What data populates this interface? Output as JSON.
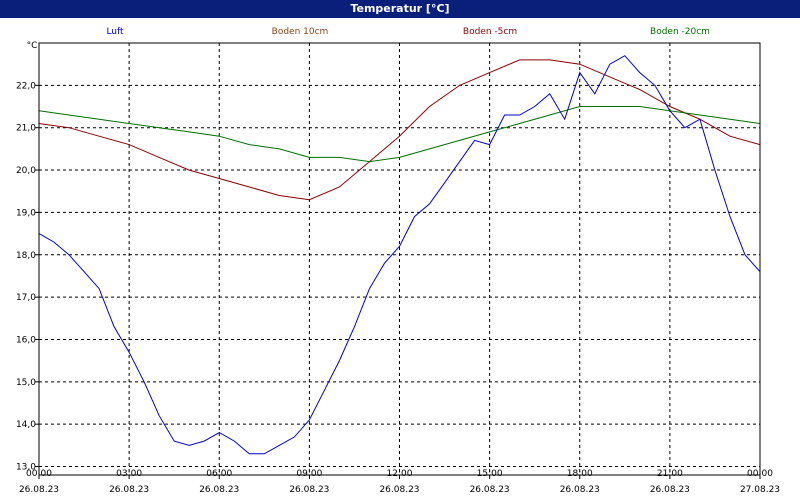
{
  "window": {
    "title": "Temperatur [°C]"
  },
  "colors": {
    "titlebar": "#0a1f7a",
    "Luft": "#0000cc",
    "Boden 10cm": "#8b0000",
    "Boden -5cm": "#8b0000",
    "Boden -20cm": "#007000",
    "legend_Luft": "#0000cc",
    "legend_Boden 10cm": "#8b4513",
    "legend_Boden -5cm": "#8b0000",
    "legend_Boden -20cm": "#007000"
  },
  "chart_data": {
    "type": "line",
    "title": "Temperatur [°C]",
    "ylabel": "°C",
    "ylim": [
      12.8,
      23.0
    ],
    "xlim": [
      "26.08.23 00:00",
      "27.08.23 00:00"
    ],
    "grid": true,
    "legend_position": "top",
    "yticks": [
      "13,0",
      "14,0",
      "15,0",
      "16,0",
      "17,0",
      "18,0",
      "19,0",
      "20,0",
      "21,0",
      "22,0"
    ],
    "xticks": [
      {
        "time": "00:00",
        "date": "26.08.23"
      },
      {
        "time": "03:00",
        "date": "26.08.23"
      },
      {
        "time": "06:00",
        "date": "26.08.23"
      },
      {
        "time": "09:00",
        "date": "26.08.23"
      },
      {
        "time": "12:00",
        "date": "26.08.23"
      },
      {
        "time": "15:00",
        "date": "26.08.23"
      },
      {
        "time": "18:00",
        "date": "26.08.23"
      },
      {
        "time": "21:00",
        "date": "26.08.23"
      },
      {
        "time": "00:00",
        "date": "27.08.23"
      }
    ],
    "series": [
      {
        "name": "Luft",
        "points": [
          [
            "26.08.23 00:00",
            18.5
          ],
          [
            "26.08.23 00:30",
            18.3
          ],
          [
            "26.08.23 01:00",
            18.0
          ],
          [
            "26.08.23 01:30",
            17.6
          ],
          [
            "26.08.23 02:00",
            17.2
          ],
          [
            "26.08.23 02:30",
            16.3
          ],
          [
            "26.08.23 03:00",
            15.7
          ],
          [
            "26.08.23 03:30",
            15.0
          ],
          [
            "26.08.23 04:00",
            14.2
          ],
          [
            "26.08.23 04:30",
            13.6
          ],
          [
            "26.08.23 05:00",
            13.5
          ],
          [
            "26.08.23 05:30",
            13.6
          ],
          [
            "26.08.23 06:00",
            13.8
          ],
          [
            "26.08.23 06:30",
            13.6
          ],
          [
            "26.08.23 07:00",
            13.3
          ],
          [
            "26.08.23 07:30",
            13.3
          ],
          [
            "26.08.23 08:00",
            13.5
          ],
          [
            "26.08.23 08:30",
            13.7
          ],
          [
            "26.08.23 09:00",
            14.1
          ],
          [
            "26.08.23 09:30",
            14.8
          ],
          [
            "26.08.23 10:00",
            15.5
          ],
          [
            "26.08.23 10:30",
            16.3
          ],
          [
            "26.08.23 11:00",
            17.2
          ],
          [
            "26.08.23 11:30",
            17.8
          ],
          [
            "26.08.23 12:00",
            18.2
          ],
          [
            "26.08.23 12:30",
            18.9
          ],
          [
            "26.08.23 13:00",
            19.2
          ],
          [
            "26.08.23 13:30",
            19.7
          ],
          [
            "26.08.23 14:00",
            20.2
          ],
          [
            "26.08.23 14:30",
            20.7
          ],
          [
            "26.08.23 15:00",
            20.6
          ],
          [
            "26.08.23 15:30",
            21.3
          ],
          [
            "26.08.23 16:00",
            21.3
          ],
          [
            "26.08.23 16:30",
            21.5
          ],
          [
            "26.08.23 17:00",
            21.8
          ],
          [
            "26.08.23 17:30",
            21.2
          ],
          [
            "26.08.23 18:00",
            22.3
          ],
          [
            "26.08.23 18:30",
            21.8
          ],
          [
            "26.08.23 19:00",
            22.5
          ],
          [
            "26.08.23 19:30",
            22.7
          ],
          [
            "26.08.23 20:00",
            22.3
          ],
          [
            "26.08.23 20:30",
            22.0
          ],
          [
            "26.08.23 21:00",
            21.4
          ],
          [
            "26.08.23 21:30",
            21.0
          ],
          [
            "26.08.23 22:00",
            21.2
          ],
          [
            "26.08.23 22:30",
            20.0
          ],
          [
            "26.08.23 23:00",
            18.9
          ],
          [
            "26.08.23 23:30",
            18.0
          ],
          [
            "27.08.23 00:00",
            17.6
          ]
        ]
      },
      {
        "name": "Boden 10cm",
        "points": [
          [
            "26.08.23 00:00",
            21.1
          ],
          [
            "26.08.23 01:00",
            21.0
          ],
          [
            "26.08.23 02:00",
            20.8
          ],
          [
            "26.08.23 03:00",
            20.6
          ],
          [
            "26.08.23 04:00",
            20.3
          ],
          [
            "26.08.23 05:00",
            20.0
          ],
          [
            "26.08.23 06:00",
            19.8
          ],
          [
            "26.08.23 07:00",
            19.6
          ],
          [
            "26.08.23 08:00",
            19.4
          ],
          [
            "26.08.23 09:00",
            19.3
          ],
          [
            "26.08.23 10:00",
            19.6
          ],
          [
            "26.08.23 11:00",
            20.2
          ],
          [
            "26.08.23 12:00",
            20.8
          ],
          [
            "26.08.23 13:00",
            21.5
          ],
          [
            "26.08.23 14:00",
            22.0
          ],
          [
            "26.08.23 15:00",
            22.3
          ],
          [
            "26.08.23 16:00",
            22.6
          ],
          [
            "26.08.23 17:00",
            22.6
          ],
          [
            "26.08.23 18:00",
            22.5
          ],
          [
            "26.08.23 19:00",
            22.2
          ],
          [
            "26.08.23 20:00",
            21.9
          ],
          [
            "26.08.23 21:00",
            21.5
          ],
          [
            "26.08.23 22:00",
            21.2
          ],
          [
            "26.08.23 23:00",
            20.8
          ],
          [
            "27.08.23 00:00",
            20.6
          ]
        ]
      },
      {
        "name": "Boden -20cm",
        "points": [
          [
            "26.08.23 00:00",
            21.4
          ],
          [
            "26.08.23 01:00",
            21.3
          ],
          [
            "26.08.23 02:00",
            21.2
          ],
          [
            "26.08.23 03:00",
            21.1
          ],
          [
            "26.08.23 04:00",
            21.0
          ],
          [
            "26.08.23 05:00",
            20.9
          ],
          [
            "26.08.23 06:00",
            20.8
          ],
          [
            "26.08.23 07:00",
            20.6
          ],
          [
            "26.08.23 08:00",
            20.5
          ],
          [
            "26.08.23 09:00",
            20.3
          ],
          [
            "26.08.23 10:00",
            20.3
          ],
          [
            "26.08.23 11:00",
            20.2
          ],
          [
            "26.08.23 12:00",
            20.3
          ],
          [
            "26.08.23 13:00",
            20.5
          ],
          [
            "26.08.23 14:00",
            20.7
          ],
          [
            "26.08.23 15:00",
            20.9
          ],
          [
            "26.08.23 16:00",
            21.1
          ],
          [
            "26.08.23 17:00",
            21.3
          ],
          [
            "26.08.23 18:00",
            21.5
          ],
          [
            "26.08.23 19:00",
            21.5
          ],
          [
            "26.08.23 20:00",
            21.5
          ],
          [
            "26.08.23 21:00",
            21.4
          ],
          [
            "26.08.23 22:00",
            21.3
          ],
          [
            "26.08.23 23:00",
            21.2
          ],
          [
            "27.08.23 00:00",
            21.1
          ]
        ]
      }
    ]
  }
}
